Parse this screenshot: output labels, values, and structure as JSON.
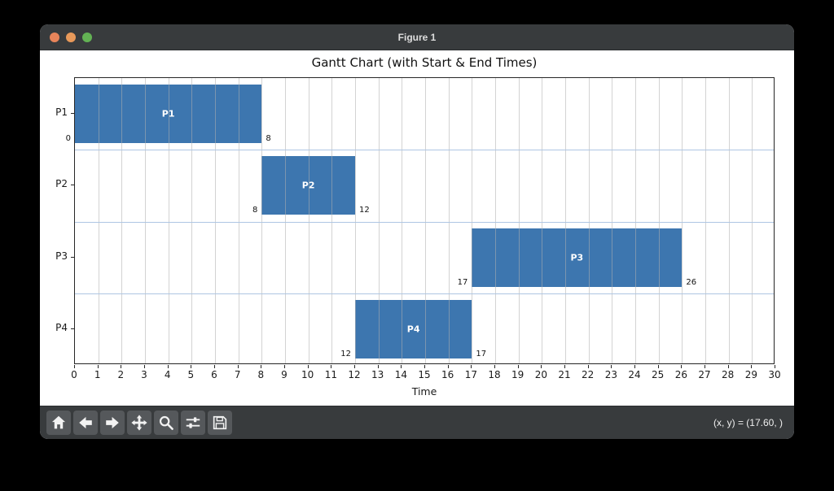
{
  "window": {
    "title": "Figure 1"
  },
  "titlebar_lights": [
    {
      "name": "close",
      "color": "#e8845a"
    },
    {
      "name": "minimize",
      "color": "#e8995a"
    },
    {
      "name": "maximize",
      "color": "#63b254"
    }
  ],
  "chart_data": {
    "type": "bar",
    "subtype": "gantt",
    "title": "Gantt Chart (with Start & End Times)",
    "xlabel": "Time",
    "xlim": [
      0,
      30
    ],
    "x_ticks": [
      0,
      1,
      2,
      3,
      4,
      5,
      6,
      7,
      8,
      9,
      10,
      11,
      12,
      13,
      14,
      15,
      16,
      17,
      18,
      19,
      20,
      21,
      22,
      23,
      24,
      25,
      26,
      27,
      28,
      29,
      30
    ],
    "grid": true,
    "rows": [
      {
        "label": "P1",
        "start": 0,
        "end": 8
      },
      {
        "label": "P2",
        "start": 8,
        "end": 12
      },
      {
        "label": "P3",
        "start": 17,
        "end": 26
      },
      {
        "label": "P4",
        "start": 12,
        "end": 17
      }
    ],
    "bar_color": "#3d76af",
    "gridline_color": "rgba(175,175,175,0.55)",
    "row_separator_color": "#aec6e3"
  },
  "toolbar": {
    "buttons": [
      {
        "icon": "home-icon"
      },
      {
        "icon": "back-arrow-icon"
      },
      {
        "icon": "forward-arrow-icon"
      },
      {
        "icon": "pan-icon"
      },
      {
        "icon": "zoom-icon"
      },
      {
        "icon": "configure-subplots-icon"
      },
      {
        "icon": "save-icon"
      }
    ],
    "status": "(x, y) = (17.60, )"
  }
}
